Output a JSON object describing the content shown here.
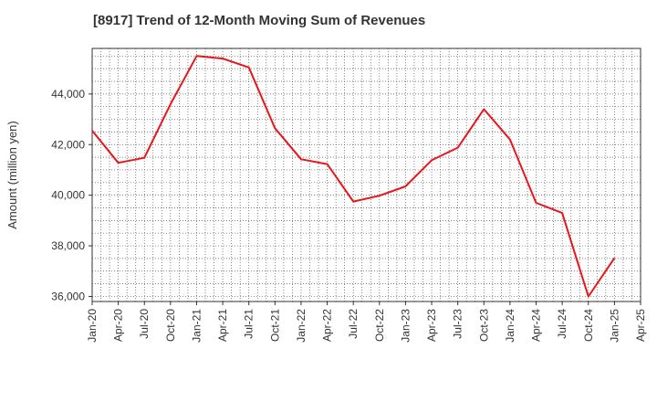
{
  "chart_data": {
    "type": "line",
    "title": "[8917]  Trend of 12-Month Moving Sum of Revenues",
    "xlabel": "",
    "ylabel": "Amount (million yen)",
    "ylim": [
      35800,
      45800
    ],
    "yticks": [
      36000,
      38000,
      40000,
      42000,
      44000
    ],
    "ytick_labels": [
      "36,000",
      "38,000",
      "40,000",
      "42,000",
      "44,000"
    ],
    "x_tick_labels": [
      "Jan-20",
      "Apr-20",
      "Jul-20",
      "Oct-20",
      "Jan-21",
      "Apr-21",
      "Jul-21",
      "Oct-21",
      "Jan-22",
      "Apr-22",
      "Jul-22",
      "Oct-22",
      "Jan-23",
      "Apr-23",
      "Jul-23",
      "Oct-23",
      "Jan-24",
      "Apr-24",
      "Jul-24",
      "Oct-24",
      "Jan-25",
      "Apr-25"
    ],
    "grid": true,
    "line_color": "#e8161b",
    "series": [
      {
        "values": [
          42550,
          41280,
          41480,
          43600,
          45500,
          45400,
          45050,
          42650,
          41420,
          41230,
          39750,
          39980,
          40350,
          41380,
          41880,
          43400,
          42200,
          39700,
          39300,
          36000,
          37520
        ]
      }
    ]
  }
}
